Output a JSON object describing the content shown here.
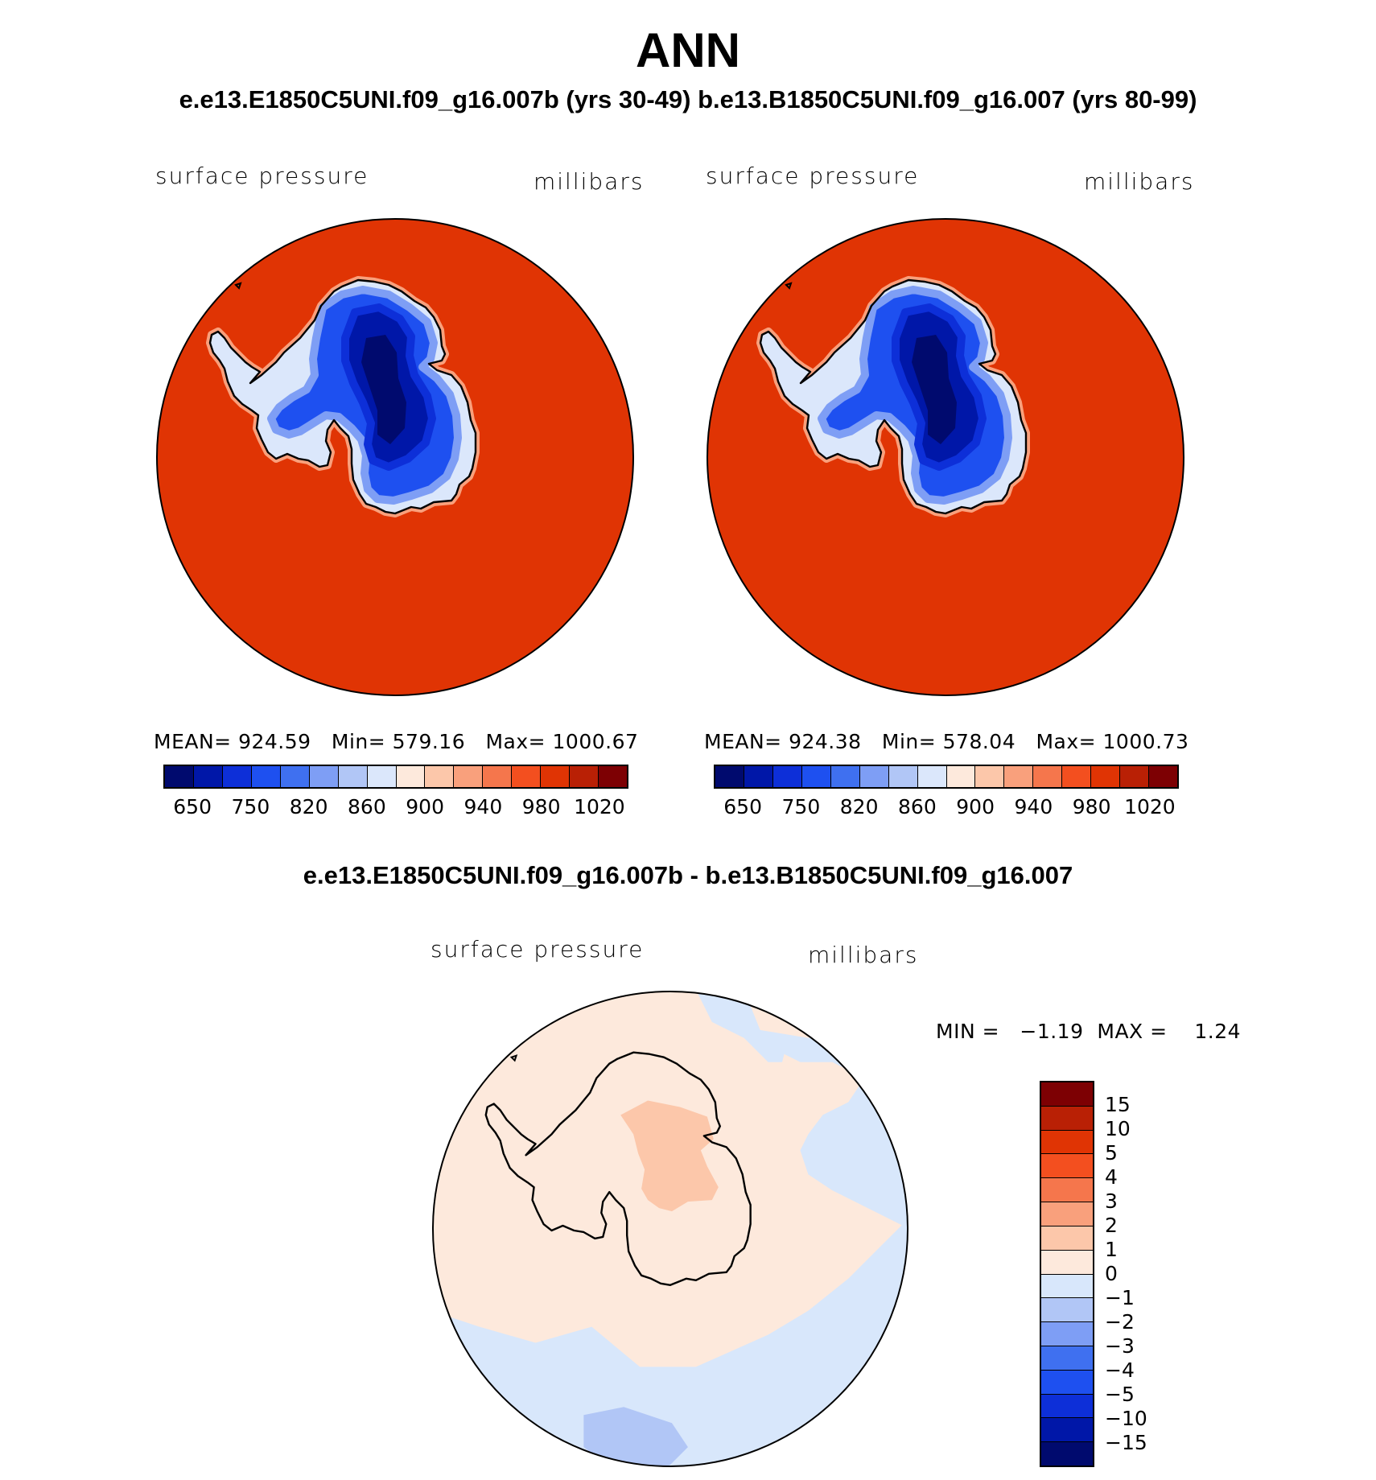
{
  "title": "ANN",
  "subtitle": "e.e13.E1850C5UNI.f09_g16.007b (yrs 30-49)  b.e13.B1850C5UNI.f09_g16.007 (yrs 80-99)",
  "diff_title": "e.e13.E1850C5UNI.f09_g16.007b - b.e13.B1850C5UNI.f09_g16.007",
  "palettes": {
    "abs": [
      "#000a6e",
      "#0017a8",
      "#0d2fd8",
      "#1e50f0",
      "#3f70f0",
      "#7e9ef5",
      "#b1c6f6",
      "#dbe7fb",
      "#fde9dc",
      "#fcc7aa",
      "#f9a07c",
      "#f5764c",
      "#f34f1f",
      "#e03404",
      "#b92005",
      "#7d0003"
    ],
    "diff": [
      "#000a6e",
      "#0017a8",
      "#0d2fd8",
      "#1e50f0",
      "#3f70f0",
      "#7e9ef5",
      "#b1c6f6",
      "#d8e7fb",
      "#fde9dc",
      "#fcc7aa",
      "#f9a07c",
      "#f5764c",
      "#f34f1f",
      "#e03404",
      "#b92005",
      "#7d0003"
    ]
  },
  "chart_data": [
    {
      "type": "heatmap",
      "panel": "left",
      "projection": "south-polar-stereographic",
      "left_label": "surface pressure",
      "right_label": "millibars",
      "stats": {
        "mean": "924.59",
        "min": "579.16",
        "max": "1000.67"
      },
      "stats_text": "MEAN= 924.59   Min= 579.16   Max= 1000.67",
      "colorbar_ticks": [
        "650",
        "750",
        "820",
        "860",
        "900",
        "940",
        "980",
        "1020"
      ],
      "ocean_color": "#e03404"
    },
    {
      "type": "heatmap",
      "panel": "right",
      "projection": "south-polar-stereographic",
      "left_label": "surface pressure",
      "right_label": "millibars",
      "stats": {
        "mean": "924.38",
        "min": "578.04",
        "max": "1000.73"
      },
      "stats_text": "MEAN= 924.38   Min= 578.04   Max= 1000.73",
      "colorbar_ticks": [
        "650",
        "750",
        "820",
        "860",
        "900",
        "940",
        "980",
        "1020"
      ],
      "ocean_color": "#e03404"
    },
    {
      "type": "heatmap",
      "panel": "difference",
      "projection": "south-polar-stereographic",
      "left_label": "surface pressure",
      "right_label": "millibars",
      "stats": {
        "min": "-1.19",
        "max": "1.24"
      },
      "stats_text": "MIN =   −1.19  MAX =    1.24",
      "colorbar_ticks": [
        "15",
        "10",
        "5",
        "4",
        "3",
        "2",
        "1",
        "0",
        "−1",
        "−2",
        "−3",
        "−4",
        "−5",
        "−10",
        "−15"
      ]
    }
  ]
}
